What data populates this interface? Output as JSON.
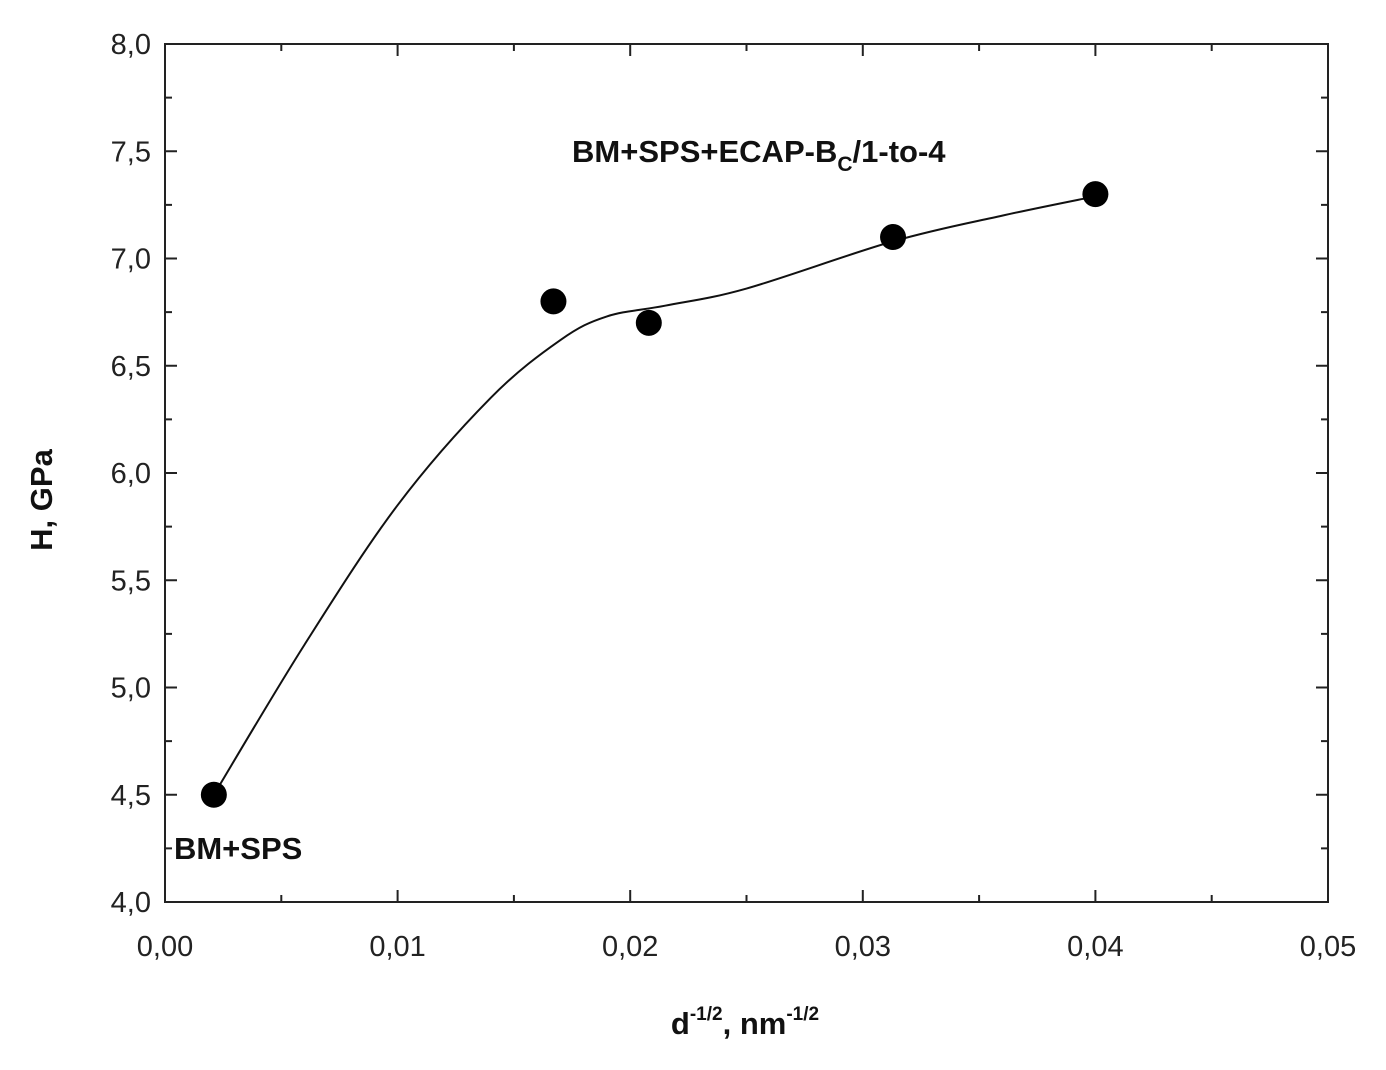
{
  "chart_data": {
    "type": "scatter",
    "title": "",
    "xlabel": {
      "base": "d",
      "exp": "-1/2",
      "sep": ", nm",
      "unit_exp": "-1/2"
    },
    "ylabel": "H, GPa",
    "xlim": [
      0.0,
      0.05
    ],
    "ylim": [
      4.0,
      8.0
    ],
    "x_ticks": [
      {
        "value": 0.0,
        "label": "0,00"
      },
      {
        "value": 0.01,
        "label": "0,01"
      },
      {
        "value": 0.02,
        "label": "0,02"
      },
      {
        "value": 0.03,
        "label": "0,03"
      },
      {
        "value": 0.04,
        "label": "0,04"
      },
      {
        "value": 0.05,
        "label": "0,05"
      }
    ],
    "y_ticks": [
      {
        "value": 4.0,
        "label": "4,0"
      },
      {
        "value": 4.5,
        "label": "4,5"
      },
      {
        "value": 5.0,
        "label": "5,0"
      },
      {
        "value": 5.5,
        "label": "5,5"
      },
      {
        "value": 6.0,
        "label": "6,0"
      },
      {
        "value": 6.5,
        "label": "6,5"
      },
      {
        "value": 7.0,
        "label": "7,0"
      },
      {
        "value": 7.5,
        "label": "7,5"
      },
      {
        "value": 8.0,
        "label": "8,0"
      }
    ],
    "grid": false,
    "series": [
      {
        "points": [
          {
            "x": 0.0021,
            "y": 4.5
          },
          {
            "x": 0.0167,
            "y": 6.8
          },
          {
            "x": 0.0208,
            "y": 6.7
          },
          {
            "x": 0.0313,
            "y": 7.1
          },
          {
            "x": 0.04,
            "y": 7.3
          }
        ],
        "color": "#000000"
      }
    ],
    "fit_curve": [
      {
        "x": 0.0021,
        "y": 4.5
      },
      {
        "x": 0.006,
        "y": 5.2
      },
      {
        "x": 0.01,
        "y": 5.85
      },
      {
        "x": 0.014,
        "y": 6.35
      },
      {
        "x": 0.017,
        "y": 6.62
      },
      {
        "x": 0.019,
        "y": 6.73
      },
      {
        "x": 0.0215,
        "y": 6.78
      },
      {
        "x": 0.025,
        "y": 6.86
      },
      {
        "x": 0.0313,
        "y": 7.08
      },
      {
        "x": 0.036,
        "y": 7.2
      },
      {
        "x": 0.04,
        "y": 7.29
      }
    ],
    "annotations": [
      {
        "id": "ecap",
        "base": "BM+SPS+ECAP-B",
        "sub": "C",
        "tail": "/1-to-4",
        "x": 0.0175,
        "y": 7.45
      },
      {
        "id": "sps",
        "text": "BM+SPS",
        "x": 0.0003,
        "y": 4.2
      }
    ]
  }
}
